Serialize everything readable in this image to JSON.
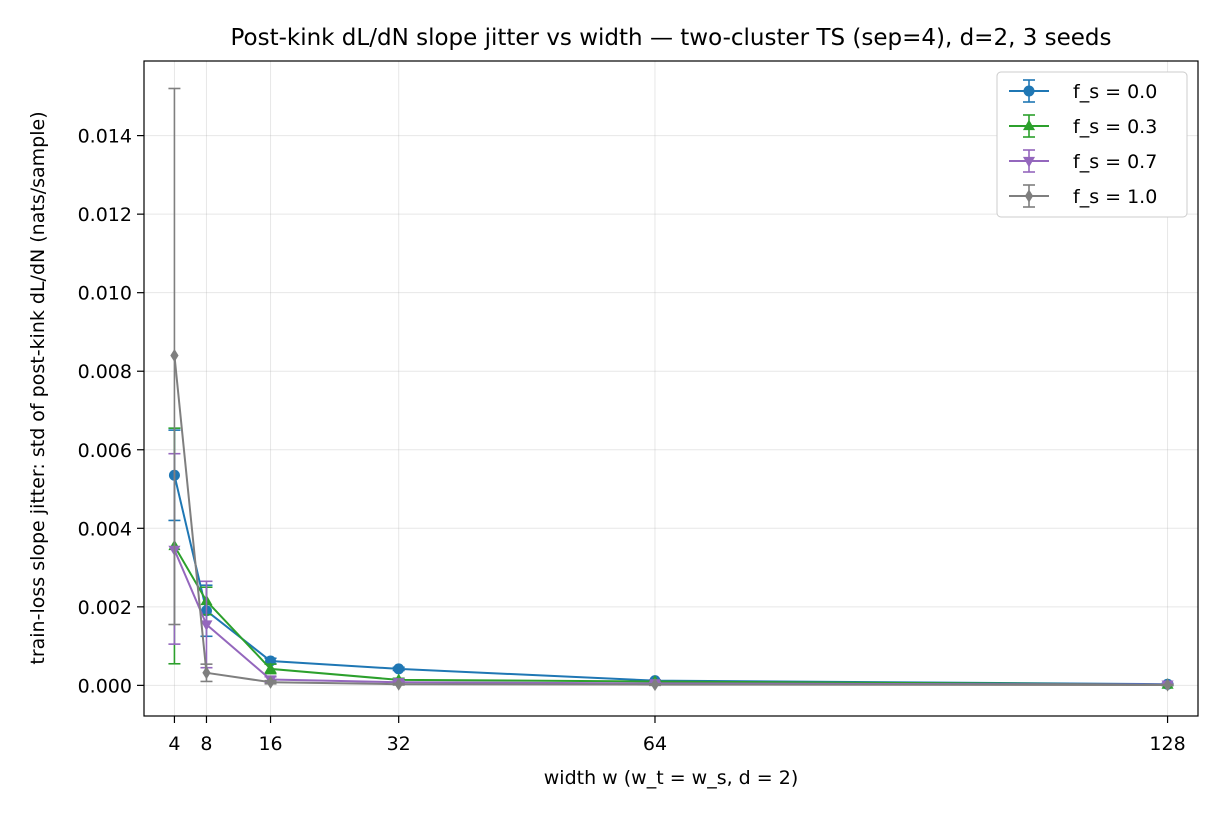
{
  "chart_data": {
    "type": "line",
    "title": "Post-kink dL/dN slope jitter vs width — two-cluster TS (sep=4), d=2, 3 seeds",
    "xlabel": "width  w  (w_t = w_s, d = 2)",
    "ylabel": "train-loss slope jitter: std of post-kink dL/dN (nats/sample)",
    "x": [
      4,
      8,
      16,
      32,
      64,
      128
    ],
    "x_tick_labels": [
      "4",
      "8",
      "16",
      "32",
      "64",
      "128"
    ],
    "xlim": [
      0.2,
      131.8
    ],
    "ylim": [
      -0.00078,
      0.0159
    ],
    "y_ticks": [
      0,
      0.002,
      0.004,
      0.006,
      0.008,
      0.01,
      0.012,
      0.014
    ],
    "y_tick_labels": [
      "0.000",
      "0.002",
      "0.004",
      "0.006",
      "0.008",
      "0.010",
      "0.012",
      "0.014"
    ],
    "grid": true,
    "legend_position": "top-right",
    "error_bars": true,
    "series": [
      {
        "name": "f_s = 0.0",
        "color": "#1f77b4",
        "marker": "circle",
        "values": [
          0.00535,
          0.0019,
          0.00062,
          0.00042,
          0.00012,
          3e-05
        ],
        "err_low": [
          0.0042,
          0.00125,
          0.00055,
          0.00038,
          0.0001,
          1e-05
        ],
        "err_high": [
          0.0065,
          0.00255,
          0.00069,
          0.00046,
          0.00014,
          5e-05
        ]
      },
      {
        "name": "f_s = 0.3",
        "color": "#2ca02c",
        "marker": "triangle-up",
        "values": [
          0.00355,
          0.00215,
          0.00042,
          0.00014,
          0.0001,
          2e-05
        ],
        "err_low": [
          0.00055,
          0.0018,
          0.0003,
          0.0001,
          7e-05,
          0.0
        ],
        "err_high": [
          0.00655,
          0.0025,
          0.00054,
          0.00018,
          0.00013,
          4e-05
        ]
      },
      {
        "name": "f_s = 0.7",
        "color": "#9467bd",
        "marker": "triangle-down",
        "values": [
          0.00345,
          0.00155,
          0.00015,
          8e-05,
          5e-05,
          2e-05
        ],
        "err_low": [
          0.00105,
          0.00045,
          8e-05,
          4e-05,
          2e-05,
          0.0
        ],
        "err_high": [
          0.0059,
          0.00265,
          0.00022,
          0.00012,
          8e-05,
          4e-05
        ]
      },
      {
        "name": "f_s = 1.0",
        "color": "#7f7f7f",
        "marker": "diamond",
        "values": [
          0.0084,
          0.00032,
          8e-05,
          3e-05,
          2e-05,
          1e-05
        ],
        "err_low": [
          0.00155,
          0.0001,
          4e-05,
          1e-05,
          0.0,
          0.0
        ],
        "err_high": [
          0.0152,
          0.00054,
          0.00012,
          5e-05,
          4e-05,
          2e-05
        ]
      }
    ]
  }
}
